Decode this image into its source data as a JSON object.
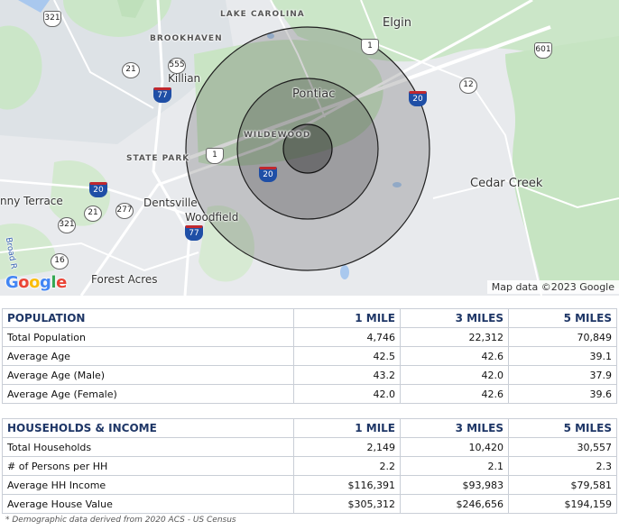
{
  "map": {
    "places": {
      "lake_carolina": "LAKE CAROLINA",
      "elgin": "Elgin",
      "brookhaven": "BROOKHAVEN",
      "killian": "Killian",
      "pontiac": "Pontiac",
      "wildewood": "WILDEWOOD",
      "state_park": "STATE PARK",
      "cedar_creek": "Cedar Creek",
      "jenny_terrace": "nny Terrace",
      "dentsville": "Dentsville",
      "woodfield": "Woodfield",
      "forest_acres": "Forest Acres",
      "broad_river": "Broad R"
    },
    "shields": {
      "s321a": "321",
      "s1a": "1",
      "s601": "601",
      "s21a": "21",
      "s555": "555",
      "s77a": "77",
      "s20a": "20",
      "s12": "12",
      "s1b": "1",
      "s20b": "20",
      "s20c": "20",
      "s21b": "21",
      "s277": "277",
      "s321b": "321",
      "s77b": "77",
      "s16": "16"
    },
    "logo": "Google",
    "credit": "Map data ©2023 Google",
    "colors": {
      "green": "#c9e7c6",
      "ring": "#1f1f1f"
    }
  },
  "population": {
    "header": [
      "POPULATION",
      "1 MILE",
      "3 MILES",
      "5 MILES"
    ],
    "rows": [
      {
        "label": "Total Population",
        "v1": "4,746",
        "v3": "22,312",
        "v5": "70,849"
      },
      {
        "label": "Average Age",
        "v1": "42.5",
        "v3": "42.6",
        "v5": "39.1"
      },
      {
        "label": "Average Age (Male)",
        "v1": "43.2",
        "v3": "42.0",
        "v5": "37.9"
      },
      {
        "label": "Average Age (Female)",
        "v1": "42.0",
        "v3": "42.6",
        "v5": "39.6"
      }
    ]
  },
  "households": {
    "header": [
      "HOUSEHOLDS & INCOME",
      "1 MILE",
      "3 MILES",
      "5 MILES"
    ],
    "rows": [
      {
        "label": "Total Households",
        "v1": "2,149",
        "v3": "10,420",
        "v5": "30,557"
      },
      {
        "label": "# of Persons per HH",
        "v1": "2.2",
        "v3": "2.1",
        "v5": "2.3"
      },
      {
        "label": "Average HH Income",
        "v1": "$116,391",
        "v3": "$93,983",
        "v5": "$79,581"
      },
      {
        "label": "Average House Value",
        "v1": "$305,312",
        "v3": "$246,656",
        "v5": "$194,159"
      }
    ]
  },
  "footnote": "* Demographic data derived from 2020 ACS - US Census"
}
